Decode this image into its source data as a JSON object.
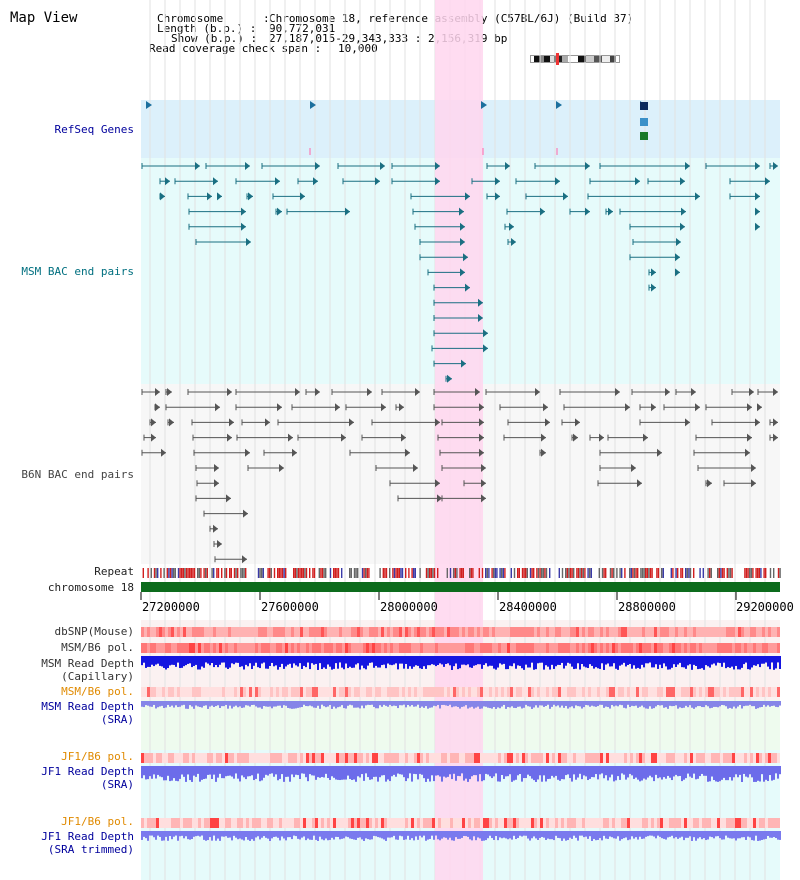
{
  "title": "Map View",
  "info": {
    "chromosome_label": "Chromosome      :",
    "chromosome_value": "Chromosome 18, reference assembly (C57BL/6J) (Build 37)",
    "length_label": "Length (b.p.) :",
    "length_value": "90,772,031",
    "show_label": "Show (b.p.) :",
    "show_value": "27,187,015-29,343,333 : 2,156,319 bp",
    "span_label": "Read coverage check span :",
    "span_value": "10,000"
  },
  "tracks": {
    "refseq": "RefSeq Genes",
    "msm_bac": "MSM BAC end pairs",
    "b6n_bac": "B6N BAC end pairs",
    "repeat": "Repeat",
    "chrom": "chromosome 18",
    "dbsnp": "dbSNP(Mouse)",
    "msm_b6_pol_1": "MSM/B6 pol.",
    "msm_depth_cap_1": "MSM Read Depth",
    "msm_depth_cap_2": "(Capillary)",
    "msm_b6_pol_2": "MSM/B6 pol.",
    "msm_depth_sra_1": "MSM Read Depth",
    "msm_depth_sra_2": "(SRA)",
    "jf1_pol_1": "JF1/B6 pol.",
    "jf1_depth_1": "JF1 Read Depth",
    "jf1_depth_2": "(SRA)",
    "jf1_pol_2": "JF1/B6 pol.",
    "jf1_depth_trim_1": "JF1 Read Depth",
    "jf1_depth_trim_2": "(SRA trimmed)"
  },
  "axis": {
    "ticks": [
      "27200000",
      "27600000",
      "28000000",
      "28400000",
      "28800000",
      "29200000"
    ]
  },
  "colors": {
    "refseq_label": "#00009c",
    "msm_label": "#006f7f",
    "b6n_label": "#444444",
    "orange_label": "#e08a00",
    "blue_label": "#00009c",
    "highlight": "#ffd6ef",
    "msm_bg": "#e6fbfb",
    "refseq_bg": "#dff0fa",
    "chrom_bar": "#0c6b1c"
  }
}
